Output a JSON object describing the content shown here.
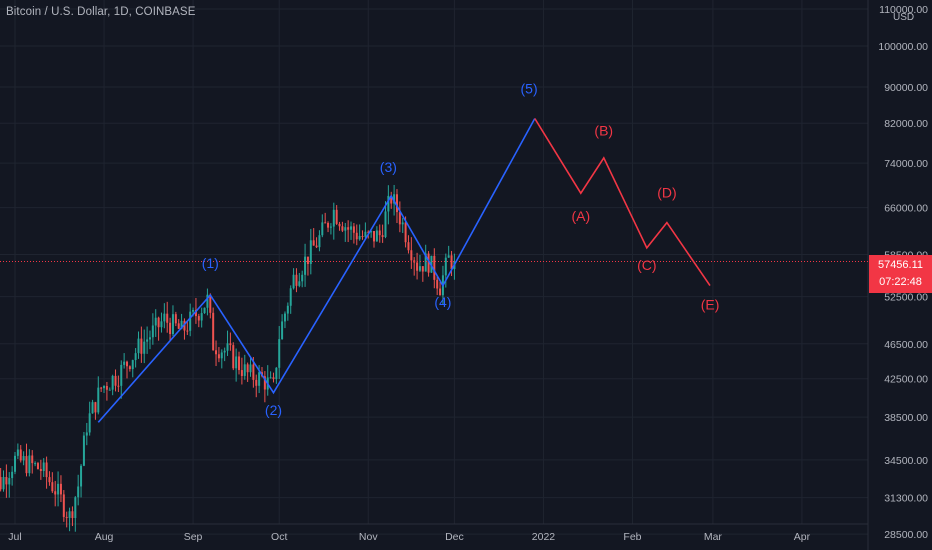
{
  "header": {
    "title": "Bitcoin / U.S. Dollar, 1D, COINBASE"
  },
  "currency": "USD",
  "colors": {
    "background": "#131722",
    "grid": "#1f2430",
    "up": "#26a69a",
    "down": "#ef5350",
    "impulse_wave": "#2962ff",
    "corrective_wave": "#f23645",
    "axis_text": "#b2b5be"
  },
  "price_badge": {
    "price": "57456.11",
    "countdown": "07:22:48"
  },
  "chart_data": {
    "type": "candlestick",
    "title": "Bitcoin / U.S. Dollar, 1D, COINBASE",
    "y_scale": "log",
    "ylim": [
      27500,
      112000
    ],
    "y_ticks": [
      "28500.00",
      "31300.00",
      "34500.00",
      "38500.00",
      "42500.00",
      "46500.00",
      "52500.00",
      "58500.00",
      "66000.00",
      "74000.00",
      "82000.00",
      "90000.00",
      "100000.00",
      "110000.00"
    ],
    "x_ticks": [
      {
        "date": "2021-07-01",
        "label": "Jul"
      },
      {
        "date": "2021-08-01",
        "label": "Aug"
      },
      {
        "date": "2021-09-01",
        "label": "Sep"
      },
      {
        "date": "2021-10-01",
        "label": "Oct"
      },
      {
        "date": "2021-11-01",
        "label": "Nov"
      },
      {
        "date": "2021-12-01",
        "label": "Dec"
      },
      {
        "date": "2022-01-01",
        "label": "2022"
      },
      {
        "date": "2022-02-01",
        "label": "Feb"
      },
      {
        "date": "2022-03-01",
        "label": "Mar"
      },
      {
        "date": "2022-04-01",
        "label": "Apr"
      }
    ],
    "last_price": 57456.11,
    "price_path": [
      [
        "2021-06-21",
        33500
      ],
      [
        "2021-06-26",
        32500
      ],
      [
        "2021-07-01",
        34500
      ],
      [
        "2021-07-05",
        34200
      ],
      [
        "2021-07-10",
        33700
      ],
      [
        "2021-07-15",
        32000
      ],
      [
        "2021-07-20",
        29800
      ],
      [
        "2021-07-23",
        32300
      ],
      [
        "2021-07-26",
        37800
      ],
      [
        "2021-07-31",
        41500
      ],
      [
        "2021-08-06",
        43000
      ],
      [
        "2021-08-13",
        46000
      ],
      [
        "2021-08-22",
        49500
      ],
      [
        "2021-08-28",
        48000
      ],
      [
        "2021-09-06",
        52000
      ],
      [
        "2021-09-08",
        46500
      ],
      [
        "2021-09-13",
        45500
      ],
      [
        "2021-09-20",
        43000
      ],
      [
        "2021-09-25",
        42500
      ],
      [
        "2021-09-29",
        41500
      ],
      [
        "2021-10-01",
        47500
      ],
      [
        "2021-10-06",
        55000
      ],
      [
        "2021-10-15",
        61000
      ],
      [
        "2021-10-20",
        65500
      ],
      [
        "2021-10-25",
        62500
      ],
      [
        "2021-10-31",
        61000
      ],
      [
        "2021-11-05",
        61500
      ],
      [
        "2021-11-09",
        67800
      ],
      [
        "2021-11-12",
        64500
      ],
      [
        "2021-11-18",
        57000
      ],
      [
        "2021-11-22",
        57500
      ],
      [
        "2021-11-26",
        54000
      ],
      [
        "2021-11-29",
        57800
      ],
      [
        "2021-12-01",
        57456
      ]
    ],
    "waves": [
      {
        "name": "impulse",
        "color": "#2962ff",
        "points": [
          [
            "2021-07-30",
            38000
          ],
          [
            "2021-09-07",
            52700
          ],
          [
            "2021-09-29",
            41000
          ],
          [
            "2021-11-09",
            68000
          ],
          [
            "2021-11-27",
            54000
          ],
          [
            "2021-12-29",
            83000
          ]
        ]
      },
      {
        "name": "corrective",
        "color": "#f23645",
        "points": [
          [
            "2021-12-29",
            83000
          ],
          [
            "2022-01-14",
            68500
          ],
          [
            "2022-01-22",
            75000
          ],
          [
            "2022-02-06",
            59500
          ],
          [
            "2022-02-13",
            63500
          ],
          [
            "2022-02-28",
            54000
          ]
        ]
      }
    ],
    "annotations": [
      {
        "text": "(1)",
        "date": "2021-09-07",
        "price": 56500,
        "color": "#2962ff"
      },
      {
        "text": "(2)",
        "date": "2021-09-29",
        "price": 38700,
        "color": "#2962ff"
      },
      {
        "text": "(3)",
        "date": "2021-11-08",
        "price": 72300,
        "color": "#2962ff"
      },
      {
        "text": "(4)",
        "date": "2021-11-27",
        "price": 51100,
        "color": "#2962ff"
      },
      {
        "text": "(5)",
        "date": "2021-12-27",
        "price": 88500,
        "color": "#2962ff"
      },
      {
        "text": "(A)",
        "date": "2022-01-14",
        "price": 63800,
        "color": "#f23645"
      },
      {
        "text": "(B)",
        "date": "2022-01-22",
        "price": 79500,
        "color": "#f23645"
      },
      {
        "text": "(C)",
        "date": "2022-02-06",
        "price": 56200,
        "color": "#f23645"
      },
      {
        "text": "(D)",
        "date": "2022-02-13",
        "price": 67700,
        "color": "#f23645"
      },
      {
        "text": "(E)",
        "date": "2022-02-28",
        "price": 50800,
        "color": "#f23645"
      }
    ]
  }
}
